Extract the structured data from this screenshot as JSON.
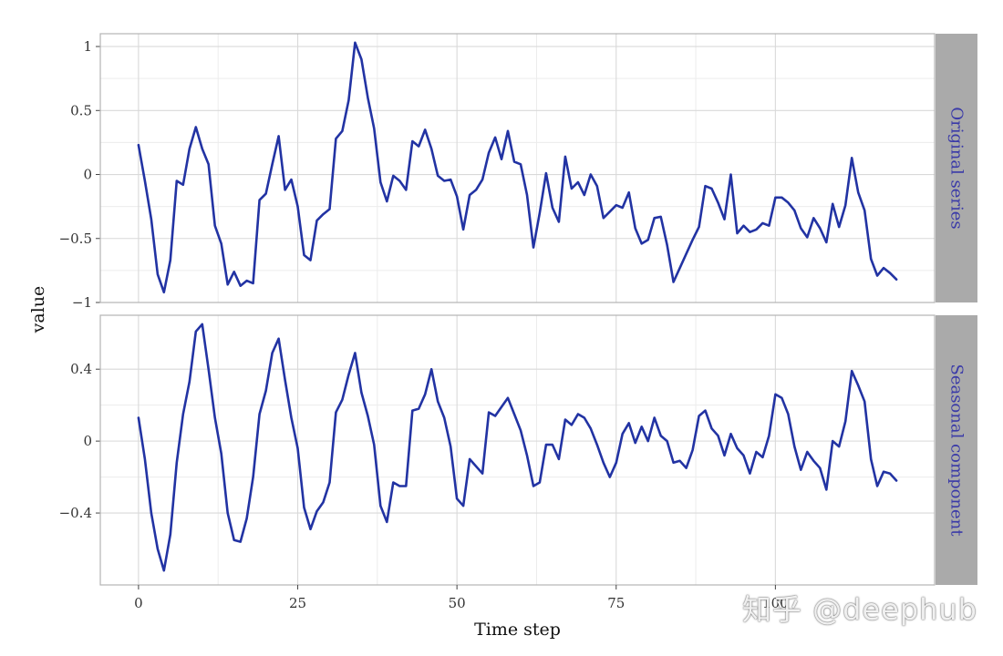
{
  "chart_data": {
    "type": "line",
    "xlabel": "Time step",
    "ylabel": "value",
    "xlim": [
      -6,
      125
    ],
    "x_ticks": [
      0,
      25,
      50,
      75,
      100
    ],
    "grid": true,
    "line_color": "#2233a3",
    "strip_background": "#aaaaaa",
    "strip_text_color": "#3a3aa8",
    "panels": [
      {
        "name": "Original series",
        "ylim": [
          -1.0,
          1.1
        ],
        "y_ticks": [
          1,
          0.5,
          0,
          -0.5,
          -1
        ],
        "y_tick_labels": [
          "1",
          "0.5",
          "0",
          "−0.5",
          "−1"
        ],
        "x": [
          0,
          1,
          2,
          3,
          4,
          5,
          6,
          7,
          8,
          9,
          10,
          11,
          12,
          13,
          14,
          15,
          16,
          17,
          18,
          19,
          20,
          21,
          22,
          23,
          24,
          25,
          26,
          27,
          28,
          29,
          30,
          31,
          32,
          33,
          34,
          35,
          36,
          37,
          38,
          39,
          40,
          41,
          42,
          43,
          44,
          45,
          46,
          47,
          48,
          49,
          50,
          51,
          52,
          53,
          54,
          55,
          56,
          57,
          58,
          59,
          60,
          61,
          62,
          63,
          64,
          65,
          66,
          67,
          68,
          69,
          70,
          71,
          72,
          73,
          74,
          75,
          76,
          77,
          78,
          79,
          80,
          81,
          82,
          83,
          84,
          85,
          86,
          87,
          88,
          89,
          90,
          91,
          92,
          93,
          94,
          95,
          96,
          97,
          98,
          99,
          100,
          101,
          102,
          103,
          104,
          105,
          106,
          107,
          108,
          109,
          110,
          111,
          112,
          113,
          114,
          115,
          116,
          117,
          118,
          119
        ],
        "values": [
          0.23,
          -0.05,
          -0.35,
          -0.78,
          -0.92,
          -0.67,
          -0.05,
          -0.08,
          0.2,
          0.37,
          0.2,
          0.08,
          -0.4,
          -0.54,
          -0.86,
          -0.76,
          -0.87,
          -0.83,
          -0.85,
          -0.2,
          -0.15,
          0.08,
          0.3,
          -0.12,
          -0.04,
          -0.25,
          -0.63,
          -0.67,
          -0.36,
          -0.31,
          -0.27,
          0.28,
          0.34,
          0.58,
          1.03,
          0.9,
          0.6,
          0.36,
          -0.06,
          -0.21,
          -0.01,
          -0.05,
          -0.12,
          0.26,
          0.22,
          0.35,
          0.2,
          -0.01,
          -0.05,
          -0.04,
          -0.17,
          -0.43,
          -0.16,
          -0.12,
          -0.04,
          0.17,
          0.29,
          0.12,
          0.34,
          0.1,
          0.08,
          -0.16,
          -0.57,
          -0.3,
          0.01,
          -0.26,
          -0.37,
          0.14,
          -0.11,
          -0.06,
          -0.16,
          0.0,
          -0.09,
          -0.34,
          -0.29,
          -0.24,
          -0.26,
          -0.14,
          -0.42,
          -0.54,
          -0.51,
          -0.34,
          -0.33,
          -0.55,
          -0.84,
          -0.73,
          -0.62,
          -0.51,
          -0.41,
          -0.09,
          -0.11,
          -0.22,
          -0.35,
          0.0,
          -0.46,
          -0.4,
          -0.45,
          -0.43,
          -0.38,
          -0.4,
          -0.18,
          -0.18,
          -0.22,
          -0.28,
          -0.42,
          -0.49,
          -0.34,
          -0.42,
          -0.53,
          -0.23,
          -0.41,
          -0.24,
          0.13,
          -0.14,
          -0.28,
          -0.66,
          -0.79,
          -0.73,
          -0.77,
          -0.82
        ]
      },
      {
        "name": "Seasonal component",
        "ylim": [
          -0.8,
          0.7
        ],
        "y_ticks": [
          0.4,
          0,
          -0.4
        ],
        "y_tick_labels": [
          "0.4",
          "0",
          "−0.4"
        ],
        "x": [
          0,
          1,
          2,
          3,
          4,
          5,
          6,
          7,
          8,
          9,
          10,
          11,
          12,
          13,
          14,
          15,
          16,
          17,
          18,
          19,
          20,
          21,
          22,
          23,
          24,
          25,
          26,
          27,
          28,
          29,
          30,
          31,
          32,
          33,
          34,
          35,
          36,
          37,
          38,
          39,
          40,
          41,
          42,
          43,
          44,
          45,
          46,
          47,
          48,
          49,
          50,
          51,
          52,
          53,
          54,
          55,
          56,
          57,
          58,
          59,
          60,
          61,
          62,
          63,
          64,
          65,
          66,
          67,
          68,
          69,
          70,
          71,
          72,
          73,
          74,
          75,
          76,
          77,
          78,
          79,
          80,
          81,
          82,
          83,
          84,
          85,
          86,
          87,
          88,
          89,
          90,
          91,
          92,
          93,
          94,
          95,
          96,
          97,
          98,
          99,
          100,
          101,
          102,
          103,
          104,
          105,
          106,
          107,
          108,
          109,
          110,
          111,
          112,
          113,
          114,
          115,
          116,
          117,
          118,
          119
        ],
        "values": [
          0.13,
          -0.1,
          -0.4,
          -0.6,
          -0.72,
          -0.52,
          -0.12,
          0.15,
          0.33,
          0.61,
          0.65,
          0.4,
          0.13,
          -0.07,
          -0.4,
          -0.55,
          -0.56,
          -0.43,
          -0.2,
          0.15,
          0.28,
          0.49,
          0.57,
          0.34,
          0.13,
          -0.04,
          -0.37,
          -0.49,
          -0.39,
          -0.34,
          -0.23,
          0.16,
          0.23,
          0.37,
          0.49,
          0.27,
          0.14,
          -0.02,
          -0.36,
          -0.45,
          -0.23,
          -0.25,
          -0.25,
          0.17,
          0.18,
          0.26,
          0.4,
          0.22,
          0.13,
          -0.03,
          -0.32,
          -0.36,
          -0.1,
          -0.14,
          -0.18,
          0.16,
          0.14,
          0.19,
          0.24,
          0.15,
          0.06,
          -0.08,
          -0.25,
          -0.23,
          -0.02,
          -0.02,
          -0.1,
          0.12,
          0.09,
          0.15,
          0.13,
          0.07,
          -0.02,
          -0.12,
          -0.2,
          -0.12,
          0.04,
          0.1,
          -0.01,
          0.08,
          0.0,
          0.13,
          0.03,
          -0.0,
          -0.12,
          -0.11,
          -0.15,
          -0.05,
          0.14,
          0.17,
          0.07,
          0.03,
          -0.08,
          0.04,
          -0.04,
          -0.08,
          -0.18,
          -0.06,
          -0.09,
          0.03,
          0.26,
          0.24,
          0.15,
          -0.03,
          -0.16,
          -0.06,
          -0.11,
          -0.15,
          -0.27,
          0.0,
          -0.03,
          0.11,
          0.39,
          0.31,
          0.22,
          -0.1,
          -0.25,
          -0.17,
          -0.18,
          -0.22
        ]
      }
    ]
  },
  "watermark": "知乎 @deephub"
}
